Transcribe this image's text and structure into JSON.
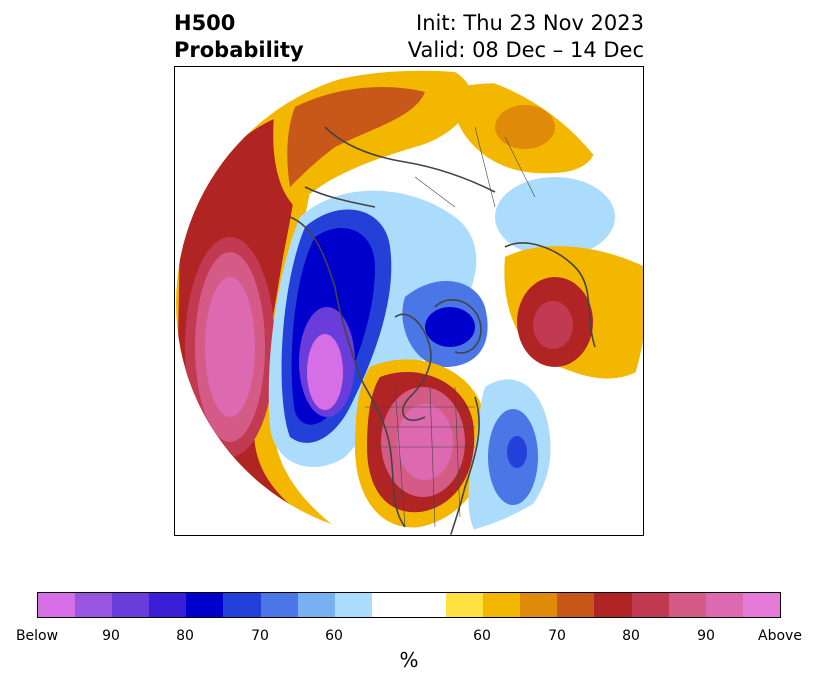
{
  "header": {
    "title_line1": "H500",
    "title_line2": "Probability",
    "init": "Init: Thu 23 Nov 2023",
    "valid": "Valid: 08 Dec – 14 Dec"
  },
  "colorbar": {
    "unit": "%",
    "colors": [
      "#d66ee6",
      "#9a55e0",
      "#6a3ddb",
      "#3a1fd6",
      "#0000cc",
      "#2341d9",
      "#4a76e6",
      "#78b1f2",
      "#acdcfb",
      "#ffffff",
      "#ffe141",
      "#f4b700",
      "#e08a0a",
      "#c8581a",
      "#b02424",
      "#c23a52",
      "#d35b86",
      "#dd6ab0",
      "#e67ad8"
    ],
    "ticks": [
      "Below",
      "90",
      "80",
      "70",
      "60",
      "60",
      "70",
      "80",
      "90",
      "Above"
    ]
  },
  "map": {
    "projection": "north-polar-stereographic",
    "anomalies": [
      {
        "region": "western Canada / Alaska",
        "category": "below",
        "max_probability": 90
      },
      {
        "region": "central & eastern United States",
        "category": "above",
        "max_probability": 90
      },
      {
        "region": "North Pacific",
        "category": "above",
        "max_probability": 90
      },
      {
        "region": "western Europe / North Atlantic",
        "category": "above",
        "max_probability": 80
      },
      {
        "region": "Greenland / Baffin",
        "category": "below",
        "max_probability": 80
      },
      {
        "region": "central North Atlantic",
        "category": "below",
        "max_probability": 80
      },
      {
        "region": "northern Siberia",
        "category": "above",
        "max_probability": 80
      }
    ]
  }
}
